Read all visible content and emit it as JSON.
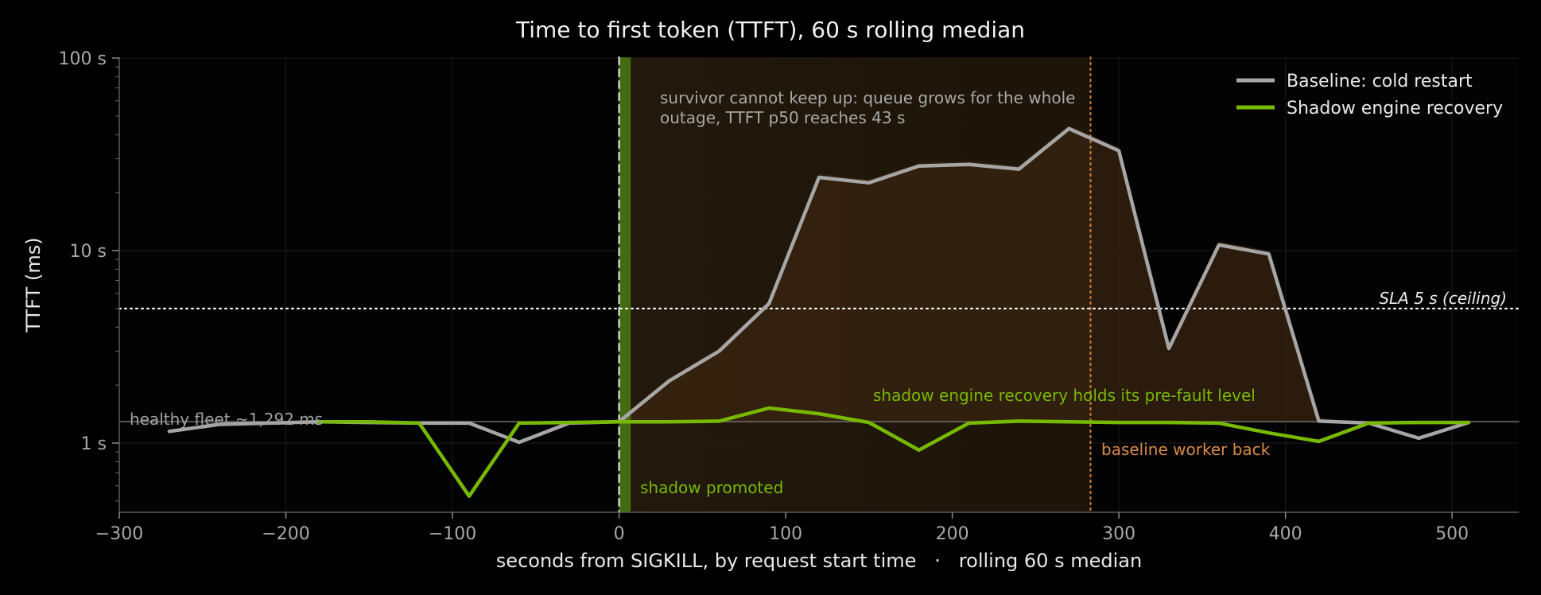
{
  "chart_data": {
    "type": "line",
    "title": "Time to first token (TTFT), 60 s rolling median",
    "xlabel": "seconds from SIGKILL, by request start time   ·   rolling 60 s median",
    "ylabel": "TTFT (ms)",
    "xlim": [
      -300,
      540
    ],
    "ylim": [
      0.43,
      100
    ],
    "yscale": "log",
    "x_ticks": [
      {
        "value": -300,
        "label": "−300"
      },
      {
        "value": -200,
        "label": "−200"
      },
      {
        "value": -100,
        "label": "−100"
      },
      {
        "value": 0,
        "label": "0"
      },
      {
        "value": 100,
        "label": "100"
      },
      {
        "value": 200,
        "label": "200"
      },
      {
        "value": 300,
        "label": "300"
      },
      {
        "value": 400,
        "label": "400"
      },
      {
        "value": 500,
        "label": "500"
      }
    ],
    "y_ticks": [
      {
        "value": 1,
        "label": "1 s"
      },
      {
        "value": 10,
        "label": "10 s"
      },
      {
        "value": 100,
        "label": "100 s"
      }
    ],
    "grid": true,
    "legend": {
      "placement": "top-right",
      "entries": [
        "Baseline: cold restart",
        "Shadow engine recovery"
      ]
    },
    "series": [
      {
        "name": "Baseline: cold restart",
        "color": "#a6a6a6",
        "x": [
          -270,
          -240,
          -210,
          -180,
          -150,
          -120,
          -90,
          -60,
          -30,
          0,
          30,
          60,
          90,
          120,
          150,
          180,
          210,
          240,
          270,
          300,
          330,
          360,
          390,
          420,
          450,
          480,
          510
        ],
        "y": [
          1.15,
          1.25,
          1.27,
          1.29,
          1.28,
          1.27,
          1.27,
          1.01,
          1.27,
          1.29,
          2.1,
          3.0,
          5.3,
          24,
          22.5,
          27.5,
          28,
          26.5,
          43,
          33,
          3.1,
          10.7,
          9.6,
          1.3,
          1.27,
          1.06,
          1.28
        ]
      },
      {
        "name": "Shadow engine recovery",
        "color": "#76b900",
        "x": [
          -180,
          -150,
          -120,
          -90,
          -60,
          -30,
          0,
          30,
          60,
          90,
          120,
          150,
          180,
          210,
          240,
          270,
          300,
          330,
          360,
          390,
          420,
          450,
          480,
          510
        ],
        "y": [
          1.29,
          1.29,
          1.27,
          0.53,
          1.27,
          1.28,
          1.29,
          1.29,
          1.3,
          1.52,
          1.42,
          1.28,
          0.92,
          1.27,
          1.3,
          1.29,
          1.28,
          1.28,
          1.27,
          1.13,
          1.02,
          1.27,
          1.28,
          1.28
        ]
      }
    ],
    "reference_lines": [
      {
        "axis": "y",
        "value": 5,
        "label": "SLA 5 s (ceiling)",
        "style": "dotted",
        "color": "#eeeeee"
      },
      {
        "axis": "y",
        "value": 1.292,
        "label": "healthy fleet ~1,292 ms",
        "style": "solid",
        "color": "#707070"
      },
      {
        "axis": "x",
        "value": 0,
        "label": "shadow promoted",
        "style": "dashed",
        "color": "#e0e0e0"
      },
      {
        "axis": "x",
        "value": 283,
        "label": "baseline worker back",
        "style": "dotted",
        "color": "#c87a3a"
      }
    ],
    "shaded_regions": [
      {
        "x": [
          0,
          283
        ],
        "color": "#5a3a10",
        "note": "outage window"
      },
      {
        "x": [
          0,
          7
        ],
        "color": "#4a7a10",
        "note": "shadow promotion"
      }
    ],
    "annotations": [
      {
        "text_lines": [
          "survivor cannot keep up: queue grows for the whole",
          "outage, TTFT p50 reaches 43 s"
        ],
        "color": "#a8a8a8"
      },
      {
        "text": "shadow engine recovery holds its pre-fault level",
        "color": "#76b900"
      }
    ]
  }
}
